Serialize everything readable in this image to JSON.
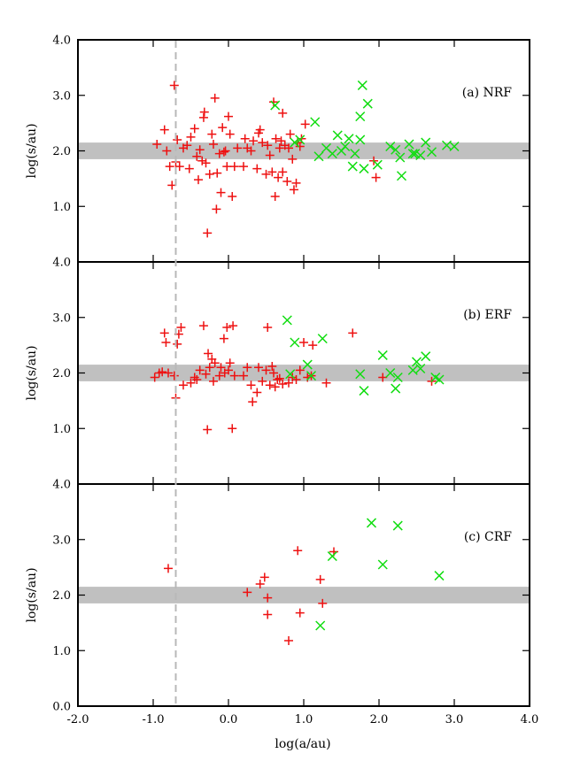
{
  "chart_data": {
    "type": "scatter",
    "xlabel": "log(a/au)",
    "ylabel": "log(s/au)",
    "xlim": [
      -2.0,
      4.0
    ],
    "ylim": [
      0.0,
      4.0
    ],
    "xticks": [
      "-2.0",
      "-1.0",
      "0.0",
      "1.0",
      "2.0",
      "3.0",
      "4.0"
    ],
    "yticks": [
      "0.0",
      "1.0",
      "2.0",
      "3.0",
      "4.0"
    ],
    "vline_x": -0.7,
    "band": [
      1.85,
      2.15
    ],
    "colors": {
      "plus": "#ee1111",
      "cross": "#11dd11",
      "band": "#c0c0c0",
      "vline": "#b8b8b8"
    },
    "panels": [
      {
        "label": "(a) NRF",
        "ytick_labels": [
          "1.0",
          "2.0",
          "3.0",
          "4.0"
        ],
        "plus": [
          [
            -0.95,
            2.12
          ],
          [
            -0.85,
            2.38
          ],
          [
            -0.82,
            2.0
          ],
          [
            -0.78,
            1.72
          ],
          [
            -0.75,
            1.38
          ],
          [
            -0.72,
            3.18
          ],
          [
            -0.7,
            1.8
          ],
          [
            -0.68,
            2.2
          ],
          [
            -0.65,
            1.72
          ],
          [
            -0.6,
            2.05
          ],
          [
            -0.55,
            2.1
          ],
          [
            -0.52,
            1.68
          ],
          [
            -0.5,
            2.25
          ],
          [
            -0.45,
            2.4
          ],
          [
            -0.42,
            1.9
          ],
          [
            -0.4,
            1.48
          ],
          [
            -0.38,
            2.02
          ],
          [
            -0.35,
            1.82
          ],
          [
            -0.33,
            2.6
          ],
          [
            -0.32,
            2.7
          ],
          [
            -0.3,
            1.78
          ],
          [
            -0.28,
            0.52
          ],
          [
            -0.25,
            1.58
          ],
          [
            -0.22,
            2.3
          ],
          [
            -0.2,
            2.12
          ],
          [
            -0.18,
            2.95
          ],
          [
            -0.16,
            0.95
          ],
          [
            -0.15,
            1.6
          ],
          [
            -0.12,
            1.95
          ],
          [
            -0.1,
            1.25
          ],
          [
            -0.08,
            2.42
          ],
          [
            -0.06,
            1.98
          ],
          [
            -0.04,
            2.0
          ],
          [
            -0.02,
            1.72
          ],
          [
            0.0,
            2.62
          ],
          [
            0.02,
            2.3
          ],
          [
            0.05,
            1.18
          ],
          [
            0.08,
            1.72
          ],
          [
            0.12,
            2.05
          ],
          [
            0.2,
            1.72
          ],
          [
            0.22,
            2.22
          ],
          [
            0.25,
            2.05
          ],
          [
            0.3,
            2.0
          ],
          [
            0.33,
            2.18
          ],
          [
            0.38,
            1.68
          ],
          [
            0.4,
            2.32
          ],
          [
            0.42,
            2.38
          ],
          [
            0.45,
            2.15
          ],
          [
            0.5,
            1.58
          ],
          [
            0.52,
            2.1
          ],
          [
            0.55,
            1.92
          ],
          [
            0.58,
            1.62
          ],
          [
            0.6,
            2.88
          ],
          [
            0.62,
            1.18
          ],
          [
            0.63,
            2.22
          ],
          [
            0.66,
            1.52
          ],
          [
            0.68,
            2.05
          ],
          [
            0.7,
            2.18
          ],
          [
            0.72,
            1.62
          ],
          [
            0.75,
            2.1
          ],
          [
            0.78,
            1.45
          ],
          [
            0.8,
            2.05
          ],
          [
            0.82,
            2.3
          ],
          [
            0.85,
            1.85
          ],
          [
            0.87,
            1.3
          ],
          [
            0.9,
            1.42
          ],
          [
            0.92,
            2.15
          ],
          [
            0.95,
            2.08
          ],
          [
            0.97,
            2.22
          ],
          [
            1.02,
            2.48
          ],
          [
            1.93,
            1.82
          ],
          [
            1.96,
            1.52
          ],
          [
            0.72,
            2.68
          ]
        ],
        "cross": [
          [
            0.62,
            2.82
          ],
          [
            0.88,
            2.15
          ],
          [
            0.95,
            2.2
          ],
          [
            1.15,
            2.52
          ],
          [
            1.2,
            1.9
          ],
          [
            1.3,
            2.05
          ],
          [
            1.38,
            1.95
          ],
          [
            1.45,
            2.28
          ],
          [
            1.5,
            2.0
          ],
          [
            1.55,
            2.08
          ],
          [
            1.6,
            2.22
          ],
          [
            1.65,
            1.72
          ],
          [
            1.68,
            1.95
          ],
          [
            1.75,
            2.62
          ],
          [
            1.78,
            3.18
          ],
          [
            1.8,
            1.68
          ],
          [
            1.85,
            2.85
          ],
          [
            1.98,
            1.75
          ],
          [
            2.15,
            2.08
          ],
          [
            2.22,
            2.02
          ],
          [
            2.28,
            1.88
          ],
          [
            2.3,
            1.55
          ],
          [
            2.4,
            2.12
          ],
          [
            2.45,
            1.95
          ],
          [
            2.48,
            1.95
          ],
          [
            2.55,
            1.92
          ],
          [
            2.62,
            2.15
          ],
          [
            2.7,
            1.98
          ],
          [
            2.9,
            2.1
          ],
          [
            3.0,
            2.08
          ],
          [
            1.75,
            2.2
          ]
        ]
      },
      {
        "label": "(b) ERF",
        "ytick_labels": [
          "1.0",
          "2.0",
          "3.0",
          "4.0"
        ],
        "plus": [
          [
            -0.98,
            1.92
          ],
          [
            -0.92,
            2.0
          ],
          [
            -0.88,
            2.02
          ],
          [
            -0.85,
            2.72
          ],
          [
            -0.83,
            2.55
          ],
          [
            -0.8,
            2.0
          ],
          [
            -0.72,
            1.95
          ],
          [
            -0.7,
            1.55
          ],
          [
            -0.68,
            2.52
          ],
          [
            -0.66,
            2.7
          ],
          [
            -0.63,
            2.82
          ],
          [
            -0.6,
            1.78
          ],
          [
            -0.5,
            1.82
          ],
          [
            -0.45,
            1.92
          ],
          [
            -0.42,
            1.88
          ],
          [
            -0.38,
            2.05
          ],
          [
            -0.33,
            2.85
          ],
          [
            -0.3,
            1.98
          ],
          [
            -0.28,
            0.98
          ],
          [
            -0.27,
            2.35
          ],
          [
            -0.25,
            2.1
          ],
          [
            -0.22,
            2.25
          ],
          [
            -0.2,
            1.85
          ],
          [
            -0.18,
            2.18
          ],
          [
            -0.12,
            1.95
          ],
          [
            -0.1,
            2.1
          ],
          [
            -0.06,
            2.62
          ],
          [
            -0.05,
            2.0
          ],
          [
            -0.02,
            2.82
          ],
          [
            0.0,
            2.05
          ],
          [
            0.02,
            2.18
          ],
          [
            0.05,
            1.0
          ],
          [
            0.06,
            2.85
          ],
          [
            0.08,
            1.95
          ],
          [
            0.2,
            1.95
          ],
          [
            0.25,
            2.1
          ],
          [
            0.3,
            1.78
          ],
          [
            0.32,
            1.48
          ],
          [
            0.38,
            1.65
          ],
          [
            0.4,
            2.1
          ],
          [
            0.45,
            1.85
          ],
          [
            0.5,
            2.05
          ],
          [
            0.52,
            2.82
          ],
          [
            0.55,
            1.78
          ],
          [
            0.58,
            2.12
          ],
          [
            0.6,
            2.0
          ],
          [
            0.62,
            1.75
          ],
          [
            0.65,
            1.88
          ],
          [
            0.68,
            1.9
          ],
          [
            0.72,
            1.8
          ],
          [
            0.8,
            1.82
          ],
          [
            0.85,
            1.92
          ],
          [
            0.9,
            1.88
          ],
          [
            0.95,
            2.05
          ],
          [
            1.0,
            2.55
          ],
          [
            1.05,
            1.92
          ],
          [
            1.1,
            1.95
          ],
          [
            1.12,
            2.5
          ],
          [
            1.3,
            1.82
          ],
          [
            1.65,
            2.72
          ],
          [
            2.05,
            1.92
          ],
          [
            2.7,
            1.85
          ]
        ],
        "cross": [
          [
            0.78,
            2.95
          ],
          [
            0.82,
            1.98
          ],
          [
            0.88,
            2.55
          ],
          [
            1.05,
            2.15
          ],
          [
            1.1,
            1.95
          ],
          [
            1.25,
            2.62
          ],
          [
            1.75,
            1.98
          ],
          [
            1.8,
            1.68
          ],
          [
            2.05,
            2.32
          ],
          [
            2.15,
            2.0
          ],
          [
            2.22,
            1.72
          ],
          [
            2.25,
            1.92
          ],
          [
            2.45,
            2.05
          ],
          [
            2.5,
            2.2
          ],
          [
            2.55,
            2.08
          ],
          [
            2.62,
            2.3
          ],
          [
            2.75,
            1.92
          ],
          [
            2.8,
            1.88
          ]
        ]
      },
      {
        "label": "(c) CRF",
        "ytick_labels": [
          "0.0",
          "1.0",
          "2.0",
          "3.0",
          "4.0"
        ],
        "plus": [
          [
            -0.8,
            2.48
          ],
          [
            0.25,
            2.05
          ],
          [
            0.42,
            2.2
          ],
          [
            0.48,
            2.32
          ],
          [
            0.52,
            1.95
          ],
          [
            0.52,
            1.65
          ],
          [
            0.8,
            1.18
          ],
          [
            0.92,
            2.8
          ],
          [
            0.95,
            1.68
          ],
          [
            1.22,
            2.28
          ],
          [
            1.25,
            1.85
          ],
          [
            1.4,
            2.78
          ]
        ],
        "cross": [
          [
            1.22,
            1.45
          ],
          [
            1.38,
            2.7
          ],
          [
            1.9,
            3.3
          ],
          [
            2.05,
            2.55
          ],
          [
            2.25,
            3.25
          ],
          [
            2.8,
            2.35
          ]
        ]
      }
    ]
  }
}
